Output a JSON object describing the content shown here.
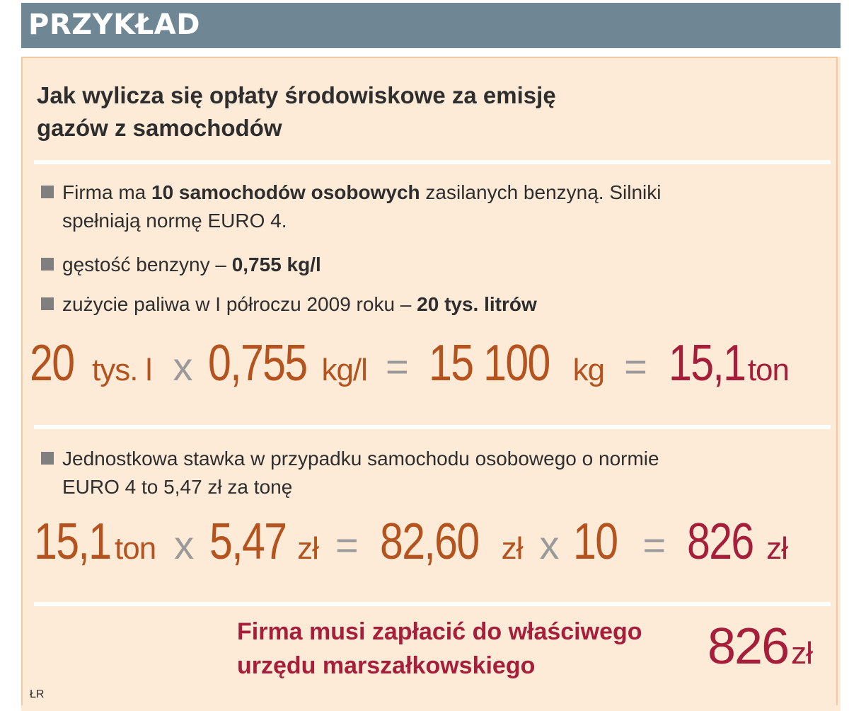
{
  "header": {
    "label": "PRZYKŁAD"
  },
  "title": {
    "line1": "Jak wylicza się opłaty środowiskowe za emisję",
    "line2": "gazów z samochodów"
  },
  "bullets": {
    "b1": {
      "pre": "Firma ma ",
      "bold": "10 samochodów osobowych",
      "post": " zasilanych benzyną. Silniki",
      "line2": "spełniają normę EURO 4."
    },
    "b2": {
      "pre": "gęstość benzyny – ",
      "bold": "0,755 kg/l"
    },
    "b3": {
      "pre": "zużycie paliwa w I półroczu 2009 roku – ",
      "bold": "20 tys. litrów"
    },
    "b4": {
      "line1": "Jednostkowa stawka w przypadku samochodu osobowego o normie",
      "line2": "EURO 4 to 5,47 zł za tonę"
    }
  },
  "equation1": {
    "a": "20",
    "a_unit": "tys. l",
    "op1": "x",
    "b": "0,755",
    "b_unit": "kg/l",
    "op2": "=",
    "c": "15 100",
    "c_unit": "kg",
    "op3": "=",
    "d": "15,1",
    "d_unit": "ton"
  },
  "equation2": {
    "a": "15,1",
    "a_unit": "ton",
    "op1": "x",
    "b": "5,47",
    "b_unit": "zł",
    "op2": "=",
    "c": "82,60",
    "c_unit": "zł",
    "op3": "x",
    "d": "10",
    "op4": "=",
    "e": "826",
    "e_unit": "zł"
  },
  "conclusion": {
    "line1": "Firma musi zapłacić do właściwego",
    "line2": "urzędu marszałkowskiego",
    "amount": "826",
    "unit": "zł"
  },
  "credit": "ŁR",
  "colors": {
    "header_bg": "#6f8794",
    "panel_bg": "#fdebd8",
    "orange": "#b5531f",
    "crimson": "#a61e3a",
    "operator": "#9a9a9a"
  }
}
